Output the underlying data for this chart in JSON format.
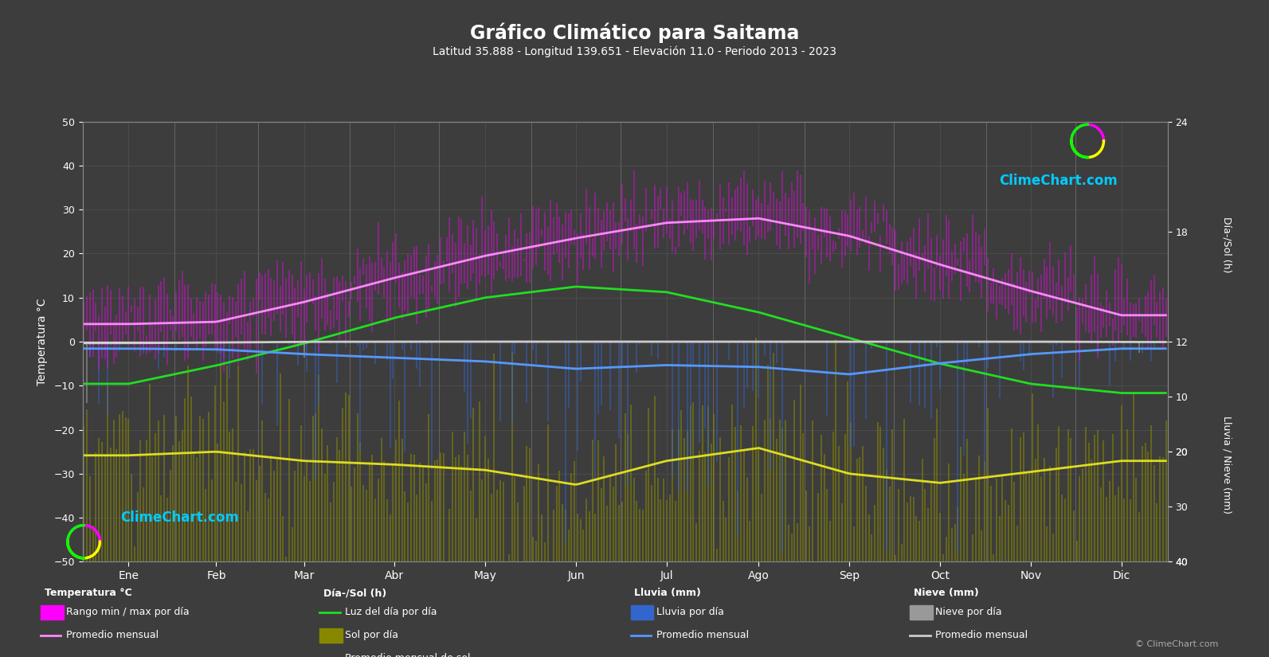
{
  "title": "Gráfico Climático para Saitama",
  "subtitle": "Latitud 35.888 - Longitud 139.651 - Elevación 11.0 - Periodo 2013 - 2023",
  "background_color": "#3d3d3d",
  "plot_bg_color": "#3d3d3d",
  "grid_color": "#606060",
  "text_color": "#ffffff",
  "months": [
    "Ene",
    "Feb",
    "Mar",
    "Abr",
    "May",
    "Jun",
    "Jul",
    "Ago",
    "Sep",
    "Oct",
    "Nov",
    "Dic"
  ],
  "days_per_month": [
    31,
    28,
    31,
    30,
    31,
    30,
    31,
    31,
    30,
    31,
    30,
    31
  ],
  "temp_min_monthly": [
    -2.0,
    -1.5,
    3.0,
    9.0,
    14.5,
    19.0,
    23.0,
    24.0,
    20.0,
    13.5,
    7.0,
    1.5
  ],
  "temp_max_monthly": [
    9.5,
    10.5,
    14.5,
    20.0,
    25.0,
    28.5,
    32.0,
    33.5,
    29.0,
    22.5,
    16.5,
    11.5
  ],
  "temp_avg_monthly": [
    4.0,
    4.5,
    9.0,
    14.5,
    19.5,
    23.5,
    27.0,
    28.0,
    24.0,
    17.5,
    11.5,
    6.0
  ],
  "daylight_monthly": [
    9.7,
    10.7,
    11.9,
    13.3,
    14.4,
    15.0,
    14.7,
    13.6,
    12.2,
    10.8,
    9.7,
    9.2
  ],
  "sunshine_monthly": [
    5.8,
    6.0,
    5.5,
    5.3,
    5.0,
    4.2,
    5.5,
    6.2,
    4.8,
    4.3,
    4.9,
    5.5
  ],
  "rain_monthly_mm": [
    38,
    42,
    68,
    88,
    108,
    148,
    128,
    138,
    178,
    118,
    68,
    38
  ],
  "snow_monthly_mm": [
    8,
    5,
    1,
    0,
    0,
    0,
    0,
    0,
    0,
    0,
    0,
    2
  ],
  "temp_ylim": [
    -50,
    50
  ],
  "daylight_ylim": [
    0,
    24
  ],
  "rain_ylim_mm": [
    0,
    40
  ],
  "daylight_ticks": [
    0,
    6,
    12,
    18,
    24
  ],
  "rain_ticks_mm": [
    0,
    10,
    20,
    30,
    40
  ],
  "temp_ticks": [
    -50,
    -40,
    -30,
    -20,
    -10,
    0,
    10,
    20,
    30,
    40,
    50
  ],
  "daylight_color": "#22dd22",
  "sunshine_avg_color": "#dddd22",
  "sunshine_bar_color": "#888800",
  "temp_bar_color": "#ff00ff",
  "temp_avg_color": "#ff88ff",
  "rain_bar_color": "#3366cc",
  "rain_avg_color": "#5599ff",
  "snow_bar_color": "#999999",
  "snow_avg_color": "#cccccc",
  "zero_line_color": "#ffffff",
  "logo_color": "#00ccff",
  "logo_text": "ClimeChart.com"
}
